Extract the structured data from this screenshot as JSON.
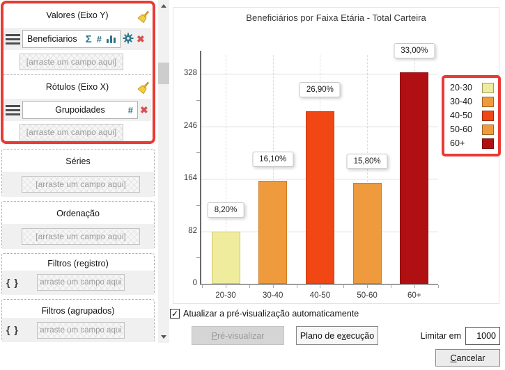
{
  "sidebar": {
    "valores": {
      "title": "Valores (Eixo Y)",
      "field": "Beneficiarios",
      "placeholder": "[arraste um campo aqui]"
    },
    "rotulos": {
      "title": "Rótulos (Eixo X)",
      "field": "Grupoidades",
      "placeholder": "[arraste um campo aqui]"
    },
    "series": {
      "title": "Séries",
      "placeholder": "[arraste um campo aqui]"
    },
    "ordenacao": {
      "title": "Ordenação",
      "placeholder": "[arraste um campo aqui]"
    },
    "filtros_registro": {
      "title": "Filtros (registro)",
      "icon": "{ }",
      "placeholder": "arraste um campo aqui"
    },
    "filtros_agrupados": {
      "title": "Filtros (agrupados)",
      "icon": "{ }",
      "placeholder": "arraste um campo aqui"
    }
  },
  "icons": {
    "sigma": "Σ",
    "hash": "#",
    "clear_x": "✖",
    "check": "✓"
  },
  "chart_data": {
    "type": "bar",
    "title": "Beneficiários por Faixa Etária - Total Carteira",
    "categories": [
      "20-30",
      "30-40",
      "40-50",
      "50-60",
      "60+"
    ],
    "values": [
      82,
      161,
      269,
      158,
      330
    ],
    "value_labels": [
      "8,20%",
      "16,10%",
      "26,90%",
      "15,80%",
      "33,00%"
    ],
    "bar_colors": [
      "#f0ec9e",
      "#f09a3e",
      "#f04715",
      "#f09a3e",
      "#b11013"
    ],
    "bar_border_colors": [
      "#cfc46a",
      "#d07c20",
      "#c93a10",
      "#d07c20",
      "#8e0d10"
    ],
    "yticks": [
      0,
      82,
      164,
      246,
      328
    ],
    "yticks_minor": [
      41,
      123,
      205,
      287
    ],
    "ylim": [
      0,
      364
    ],
    "xlabel": "",
    "ylabel": "",
    "grid": true,
    "legend_position": "right",
    "legend": [
      {
        "label": "20-30",
        "color": "#f0ec9e"
      },
      {
        "label": "30-40",
        "color": "#f09a3e"
      },
      {
        "label": "40-50",
        "color": "#f04715"
      },
      {
        "label": "50-60",
        "color": "#f09a3e"
      },
      {
        "label": "60+",
        "color": "#b11013"
      }
    ]
  },
  "footer": {
    "auto_update_label": "Atualizar a pré-visualização automaticamente",
    "auto_update_checked": true,
    "preview_button": {
      "u": "P",
      "rest": "ré-visualizar"
    },
    "plan_button": {
      "pre": "Plano de e",
      "u": "x",
      "rest": "ecução"
    },
    "limit_label": "Limitar em",
    "limit_value": "1000",
    "cancel_button": {
      "u": "C",
      "rest": "ancelar"
    }
  },
  "colors": {
    "annotation_red": "#e83b34",
    "icon_teal": "#2e7587",
    "icon_red": "#dd4b4b",
    "broom_yellow": "#f2cf3a"
  }
}
